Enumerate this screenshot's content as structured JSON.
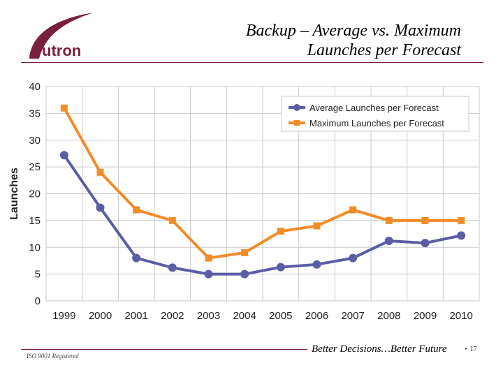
{
  "header": {
    "logo_text": "utron",
    "title_line1": "Backup – Average vs. Maximum",
    "title_line2": "Launches per Forecast"
  },
  "footer": {
    "iso": "ISO 9001 Registered",
    "tagline": "Better Decisions…Better Future",
    "page_number": "17"
  },
  "colors": {
    "brand": "#7a1f3d",
    "average": "#5b5ea6",
    "maximum": "#f28c28",
    "grid": "#c8c8c8"
  },
  "chart_data": {
    "type": "line",
    "title": "",
    "xlabel": "",
    "ylabel": "Launches",
    "ylim": [
      0,
      40
    ],
    "yticks": [
      0,
      5,
      10,
      15,
      20,
      25,
      30,
      35,
      40
    ],
    "categories": [
      "1999",
      "2000",
      "2001",
      "2002",
      "2003",
      "2004",
      "2005",
      "2006",
      "2007",
      "2008",
      "2009",
      "2010"
    ],
    "grid": true,
    "legend_position": "top-right",
    "series": [
      {
        "name": "Average Launches per Forecast",
        "marker": "circle",
        "color": "#5b5ea6",
        "values": [
          27.2,
          17.4,
          8.0,
          6.2,
          5.0,
          5.0,
          6.3,
          6.8,
          8.0,
          11.2,
          10.8,
          12.2
        ]
      },
      {
        "name": "Maximum Launches per Forecast",
        "marker": "square",
        "color": "#f28c28",
        "values": [
          36,
          24,
          17,
          15,
          8,
          9,
          13,
          14,
          17,
          15,
          15,
          15
        ]
      }
    ]
  }
}
